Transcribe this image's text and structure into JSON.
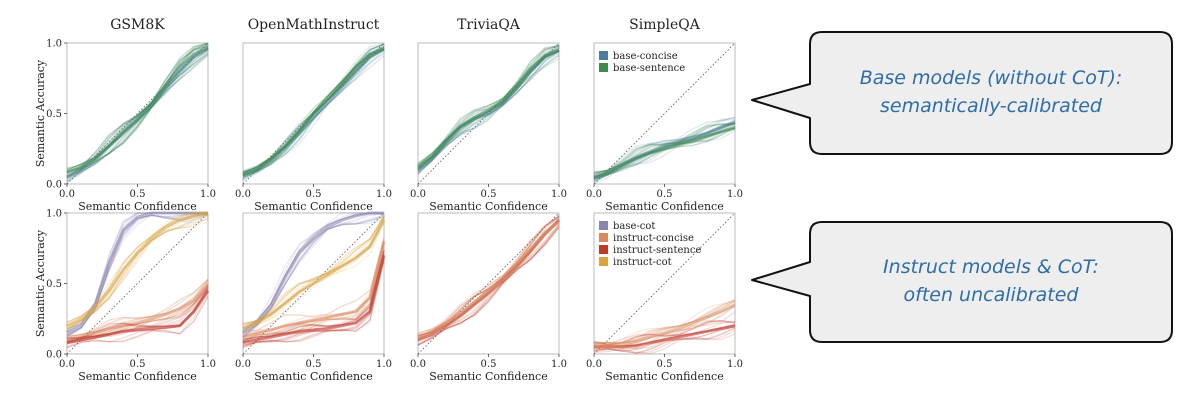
{
  "chart_data": {
    "type": "line",
    "x_axis_label": "Semantic Confidence",
    "y_axis_label": "Semantic Accuracy",
    "columns": [
      "GSM8K",
      "OpenMathInstruct",
      "TriviaQA",
      "SimpleQA"
    ],
    "xlim": [
      0,
      1
    ],
    "ylim": [
      0,
      1
    ],
    "x_ticks": [
      "0.0",
      "0.5",
      "1.0"
    ],
    "y_ticks": [
      "0.0",
      "0.5",
      "1.0"
    ],
    "reference_line": "diagonal y = x (dotted)",
    "rows": [
      {
        "legend": [
          {
            "name": "base-concise",
            "color": "#4a7d9c"
          },
          {
            "name": "base-sentence",
            "color": "#3f8a4f"
          }
        ],
        "panels": [
          {
            "dataset": "GSM8K",
            "series": [
              {
                "name": "base-concise",
                "x": [
                  0,
                  0.1,
                  0.2,
                  0.3,
                  0.4,
                  0.5,
                  0.6,
                  0.7,
                  0.8,
                  0.9,
                  1.0
                ],
                "y": [
                  0.05,
                  0.1,
                  0.17,
                  0.27,
                  0.37,
                  0.46,
                  0.56,
                  0.68,
                  0.8,
                  0.9,
                  0.96
                ]
              },
              {
                "name": "base-sentence",
                "x": [
                  0,
                  0.1,
                  0.2,
                  0.3,
                  0.4,
                  0.5,
                  0.6,
                  0.7,
                  0.8,
                  0.9,
                  1.0
                ],
                "y": [
                  0.08,
                  0.12,
                  0.18,
                  0.27,
                  0.36,
                  0.45,
                  0.56,
                  0.7,
                  0.83,
                  0.92,
                  0.97
                ]
              }
            ]
          },
          {
            "dataset": "OpenMathInstruct",
            "series": [
              {
                "name": "base-concise",
                "x": [
                  0,
                  0.1,
                  0.2,
                  0.3,
                  0.4,
                  0.5,
                  0.6,
                  0.7,
                  0.8,
                  0.9,
                  1.0
                ],
                "y": [
                  0.06,
                  0.1,
                  0.17,
                  0.26,
                  0.36,
                  0.47,
                  0.58,
                  0.69,
                  0.8,
                  0.9,
                  0.96
                ]
              },
              {
                "name": "base-sentence",
                "x": [
                  0,
                  0.1,
                  0.2,
                  0.3,
                  0.4,
                  0.5,
                  0.6,
                  0.7,
                  0.8,
                  0.9,
                  1.0
                ],
                "y": [
                  0.07,
                  0.11,
                  0.18,
                  0.27,
                  0.38,
                  0.5,
                  0.61,
                  0.72,
                  0.83,
                  0.92,
                  0.96
                ]
              }
            ]
          },
          {
            "dataset": "TriviaQA",
            "series": [
              {
                "name": "base-concise",
                "x": [
                  0,
                  0.1,
                  0.2,
                  0.3,
                  0.4,
                  0.5,
                  0.6,
                  0.7,
                  0.8,
                  0.9,
                  1.0
                ],
                "y": [
                  0.1,
                  0.18,
                  0.3,
                  0.4,
                  0.46,
                  0.5,
                  0.57,
                  0.68,
                  0.8,
                  0.9,
                  0.95
                ]
              },
              {
                "name": "base-sentence",
                "x": [
                  0,
                  0.1,
                  0.2,
                  0.3,
                  0.4,
                  0.5,
                  0.6,
                  0.7,
                  0.8,
                  0.9,
                  1.0
                ],
                "y": [
                  0.12,
                  0.2,
                  0.31,
                  0.41,
                  0.47,
                  0.52,
                  0.59,
                  0.7,
                  0.82,
                  0.91,
                  0.95
                ]
              }
            ]
          },
          {
            "dataset": "SimpleQA",
            "series": [
              {
                "name": "base-concise",
                "x": [
                  0,
                  0.1,
                  0.2,
                  0.3,
                  0.4,
                  0.5,
                  0.6,
                  0.7,
                  0.8,
                  0.9,
                  1.0
                ],
                "y": [
                  0.04,
                  0.08,
                  0.14,
                  0.19,
                  0.23,
                  0.27,
                  0.3,
                  0.33,
                  0.36,
                  0.4,
                  0.44
                ]
              },
              {
                "name": "base-sentence",
                "x": [
                  0,
                  0.1,
                  0.2,
                  0.3,
                  0.4,
                  0.5,
                  0.6,
                  0.7,
                  0.8,
                  0.9,
                  1.0
                ],
                "y": [
                  0.05,
                  0.08,
                  0.13,
                  0.18,
                  0.22,
                  0.25,
                  0.28,
                  0.31,
                  0.34,
                  0.37,
                  0.4
                ]
              }
            ]
          }
        ]
      },
      {
        "legend": [
          {
            "name": "base-cot",
            "color": "#8a85b0"
          },
          {
            "name": "instruct-concise",
            "color": "#d98b5f"
          },
          {
            "name": "instruct-sentence",
            "color": "#c0392b"
          },
          {
            "name": "instruct-cot",
            "color": "#d9a441"
          }
        ],
        "panels": [
          {
            "dataset": "GSM8K",
            "series": [
              {
                "name": "base-cot",
                "x": [
                  0,
                  0.1,
                  0.2,
                  0.3,
                  0.4,
                  0.5,
                  0.6,
                  0.7,
                  0.8,
                  0.9,
                  1.0
                ],
                "y": [
                  0.15,
                  0.2,
                  0.35,
                  0.65,
                  0.88,
                  0.97,
                  1.0,
                  1.0,
                  1.0,
                  1.0,
                  1.0
                ]
              },
              {
                "name": "instruct-concise",
                "x": [
                  0,
                  0.1,
                  0.2,
                  0.3,
                  0.4,
                  0.5,
                  0.6,
                  0.7,
                  0.8,
                  0.9,
                  1.0
                ],
                "y": [
                  0.1,
                  0.12,
                  0.15,
                  0.18,
                  0.2,
                  0.22,
                  0.25,
                  0.28,
                  0.32,
                  0.38,
                  0.5
                ]
              },
              {
                "name": "instruct-sentence",
                "x": [
                  0,
                  0.1,
                  0.2,
                  0.3,
                  0.4,
                  0.5,
                  0.6,
                  0.7,
                  0.8,
                  0.9,
                  1.0
                ],
                "y": [
                  0.08,
                  0.1,
                  0.12,
                  0.14,
                  0.16,
                  0.17,
                  0.18,
                  0.19,
                  0.2,
                  0.3,
                  0.45
                ]
              },
              {
                "name": "instruct-cot",
                "x": [
                  0,
                  0.1,
                  0.2,
                  0.3,
                  0.4,
                  0.5,
                  0.6,
                  0.7,
                  0.8,
                  0.9,
                  1.0
                ],
                "y": [
                  0.2,
                  0.25,
                  0.33,
                  0.45,
                  0.6,
                  0.72,
                  0.82,
                  0.9,
                  0.95,
                  0.98,
                  1.0
                ]
              }
            ]
          },
          {
            "dataset": "OpenMathInstruct",
            "series": [
              {
                "name": "base-cot",
                "x": [
                  0,
                  0.1,
                  0.2,
                  0.3,
                  0.4,
                  0.5,
                  0.6,
                  0.7,
                  0.8,
                  0.9,
                  1.0
                ],
                "y": [
                  0.15,
                  0.22,
                  0.35,
                  0.55,
                  0.72,
                  0.82,
                  0.9,
                  0.95,
                  0.98,
                  1.0,
                  1.0
                ]
              },
              {
                "name": "instruct-concise",
                "x": [
                  0,
                  0.1,
                  0.2,
                  0.3,
                  0.4,
                  0.5,
                  0.6,
                  0.7,
                  0.8,
                  0.9,
                  1.0
                ],
                "y": [
                  0.12,
                  0.15,
                  0.17,
                  0.2,
                  0.22,
                  0.24,
                  0.26,
                  0.28,
                  0.3,
                  0.4,
                  0.8
                ]
              },
              {
                "name": "instruct-sentence",
                "x": [
                  0,
                  0.1,
                  0.2,
                  0.3,
                  0.4,
                  0.5,
                  0.6,
                  0.7,
                  0.8,
                  0.9,
                  1.0
                ],
                "y": [
                  0.08,
                  0.1,
                  0.12,
                  0.14,
                  0.16,
                  0.17,
                  0.18,
                  0.2,
                  0.22,
                  0.3,
                  0.7
                ]
              },
              {
                "name": "instruct-cot",
                "x": [
                  0,
                  0.1,
                  0.2,
                  0.3,
                  0.4,
                  0.5,
                  0.6,
                  0.7,
                  0.8,
                  0.9,
                  1.0
                ],
                "y": [
                  0.18,
                  0.22,
                  0.28,
                  0.36,
                  0.44,
                  0.5,
                  0.56,
                  0.62,
                  0.68,
                  0.76,
                  0.95
                ]
              }
            ]
          },
          {
            "dataset": "TriviaQA",
            "series": [
              {
                "name": "instruct-sentence",
                "x": [
                  0,
                  0.1,
                  0.2,
                  0.3,
                  0.4,
                  0.5,
                  0.6,
                  0.7,
                  0.8,
                  0.9,
                  1.0
                ],
                "y": [
                  0.1,
                  0.14,
                  0.2,
                  0.27,
                  0.35,
                  0.43,
                  0.52,
                  0.62,
                  0.73,
                  0.85,
                  0.95
                ]
              },
              {
                "name": "instruct-concise",
                "x": [
                  0,
                  0.1,
                  0.2,
                  0.3,
                  0.4,
                  0.5,
                  0.6,
                  0.7,
                  0.8,
                  0.9,
                  1.0
                ],
                "y": [
                  0.12,
                  0.16,
                  0.22,
                  0.29,
                  0.37,
                  0.45,
                  0.54,
                  0.64,
                  0.75,
                  0.86,
                  0.94
                ]
              }
            ]
          },
          {
            "dataset": "SimpleQA",
            "series": [
              {
                "name": "instruct-sentence",
                "x": [
                  0,
                  0.1,
                  0.2,
                  0.3,
                  0.4,
                  0.5,
                  0.6,
                  0.7,
                  0.8,
                  0.9,
                  1.0
                ],
                "y": [
                  0.05,
                  0.05,
                  0.05,
                  0.06,
                  0.08,
                  0.1,
                  0.12,
                  0.14,
                  0.16,
                  0.18,
                  0.2
                ]
              },
              {
                "name": "instruct-concise",
                "x": [
                  0,
                  0.1,
                  0.2,
                  0.3,
                  0.4,
                  0.5,
                  0.6,
                  0.7,
                  0.8,
                  0.9,
                  1.0
                ],
                "y": [
                  0.06,
                  0.06,
                  0.07,
                  0.09,
                  0.12,
                  0.15,
                  0.18,
                  0.22,
                  0.26,
                  0.3,
                  0.35
                ]
              }
            ]
          }
        ]
      }
    ]
  },
  "callouts": [
    {
      "lines": [
        "Base models (without CoT):",
        "semantically-calibrated"
      ]
    },
    {
      "lines": [
        "Instruct models & CoT:",
        "often uncalibrated"
      ]
    }
  ]
}
